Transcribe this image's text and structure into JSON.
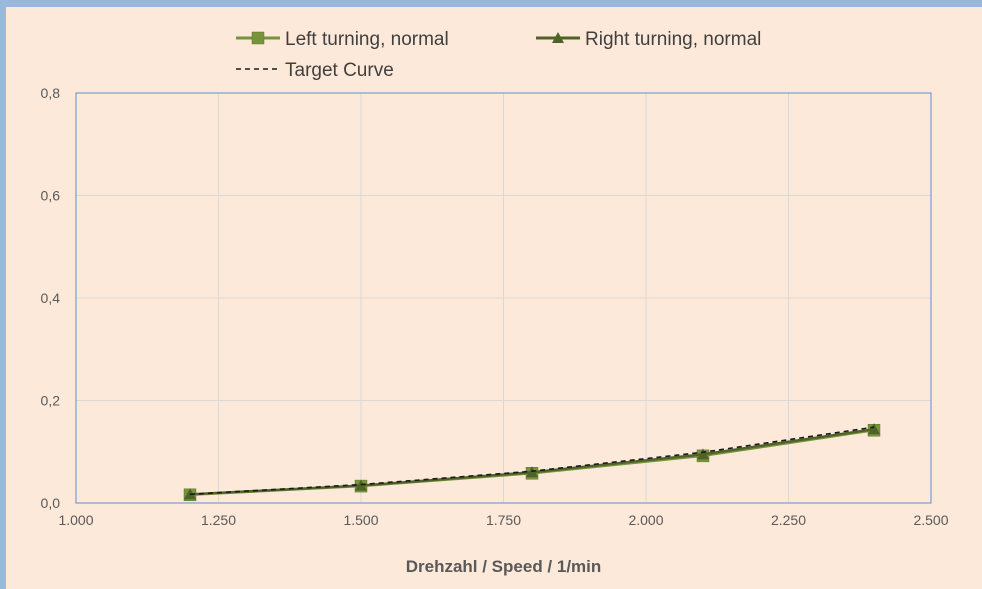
{
  "chart_data": {
    "type": "line",
    "title": "",
    "xlabel": "Drehzahl / Speed / 1/min",
    "ylabel": "",
    "xlim": [
      1000,
      2500
    ],
    "ylim": [
      0,
      0.8
    ],
    "x_ticks": [
      1000,
      1250,
      1500,
      1750,
      2000,
      2250,
      2500
    ],
    "x_tick_labels": [
      "1.000",
      "1.250",
      "1.500",
      "1.750",
      "2.000",
      "2.250",
      "2.500"
    ],
    "y_ticks": [
      0,
      0.2,
      0.4,
      0.6,
      0.8
    ],
    "y_tick_labels": [
      "0,0",
      "0,2",
      "0,4",
      "0,6",
      "0,8"
    ],
    "grid": true,
    "legend_position": "top",
    "series": [
      {
        "name": "Left turning, normal",
        "color": "#77933c",
        "marker": "square",
        "dash": "solid",
        "x": [
          1200,
          1500,
          1800,
          2100,
          2400
        ],
        "y": [
          0.016,
          0.033,
          0.058,
          0.092,
          0.142
        ]
      },
      {
        "name": "Right turning, normal",
        "color": "#4f6228",
        "marker": "triangle",
        "dash": "solid",
        "x": [
          1200,
          1500,
          1800,
          2100,
          2400
        ],
        "y": [
          0.017,
          0.034,
          0.06,
          0.095,
          0.144
        ]
      },
      {
        "name": "Target Curve",
        "color": "#1a1a1a",
        "marker": "none",
        "dash": "dashed",
        "x": [
          1200,
          1500,
          1800,
          2100,
          2400
        ],
        "y": [
          0.017,
          0.036,
          0.062,
          0.099,
          0.148
        ]
      }
    ]
  }
}
